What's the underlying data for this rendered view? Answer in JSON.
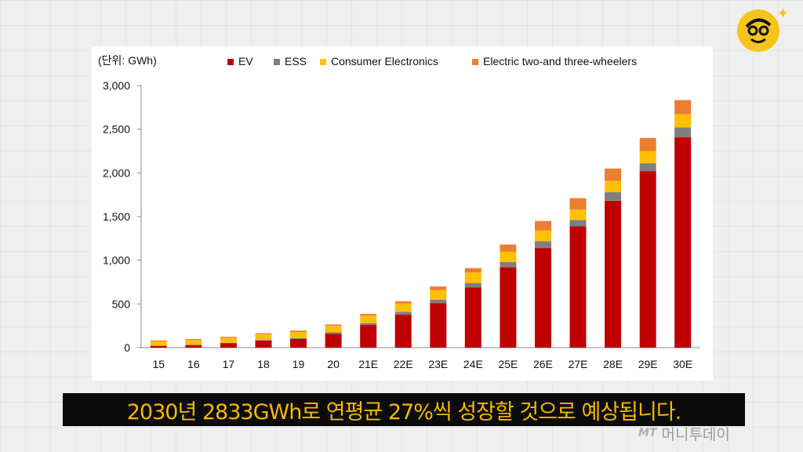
{
  "chart_data": {
    "type": "bar",
    "stacked": true,
    "unit_label": "(단위: GWh)",
    "categories": [
      "15",
      "16",
      "17",
      "18",
      "19",
      "20",
      "21E",
      "22E",
      "23E",
      "24E",
      "25E",
      "26E",
      "27E",
      "28E",
      "29E",
      "30E"
    ],
    "series": [
      {
        "name": "EV",
        "color": "#c00000",
        "values": [
          20,
          30,
          50,
          80,
          100,
          160,
          260,
          380,
          510,
          690,
          920,
          1140,
          1390,
          1680,
          2020,
          2410
        ]
      },
      {
        "name": "ESS",
        "color": "#7f7f7f",
        "values": [
          3,
          4,
          6,
          8,
          10,
          15,
          20,
          30,
          40,
          50,
          60,
          80,
          70,
          100,
          90,
          110
        ]
      },
      {
        "name": "Consumer Electronics",
        "color": "#ffc000",
        "values": [
          50,
          55,
          55,
          65,
          70,
          75,
          85,
          95,
          110,
          120,
          120,
          120,
          120,
          130,
          140,
          150
        ]
      },
      {
        "name": "Electric two-and three-wheelers",
        "color": "#ed7d31",
        "values": [
          10,
          10,
          12,
          12,
          15,
          15,
          20,
          25,
          40,
          50,
          80,
          110,
          130,
          140,
          150,
          163
        ]
      }
    ],
    "ylim": [
      0,
      3000
    ],
    "yticks": [
      0,
      500,
      1000,
      1500,
      2000,
      2500,
      3000
    ],
    "ytick_labels": [
      "0",
      "500",
      "1,000",
      "1,500",
      "2,000",
      "2,500",
      "3,000"
    ],
    "legend_position": "top",
    "grid": false
  },
  "subtitle": "2030년 2833GWh로 연평균 27%씩 성장할 것으로 예상됩니다.",
  "watermark": {
    "prefix": "MT",
    "name": "머니투데이"
  },
  "logo": {
    "icon": "cartoon-face-icon"
  },
  "sparkle": {
    "icon": "sparkle-icon",
    "glyph": "✦"
  }
}
